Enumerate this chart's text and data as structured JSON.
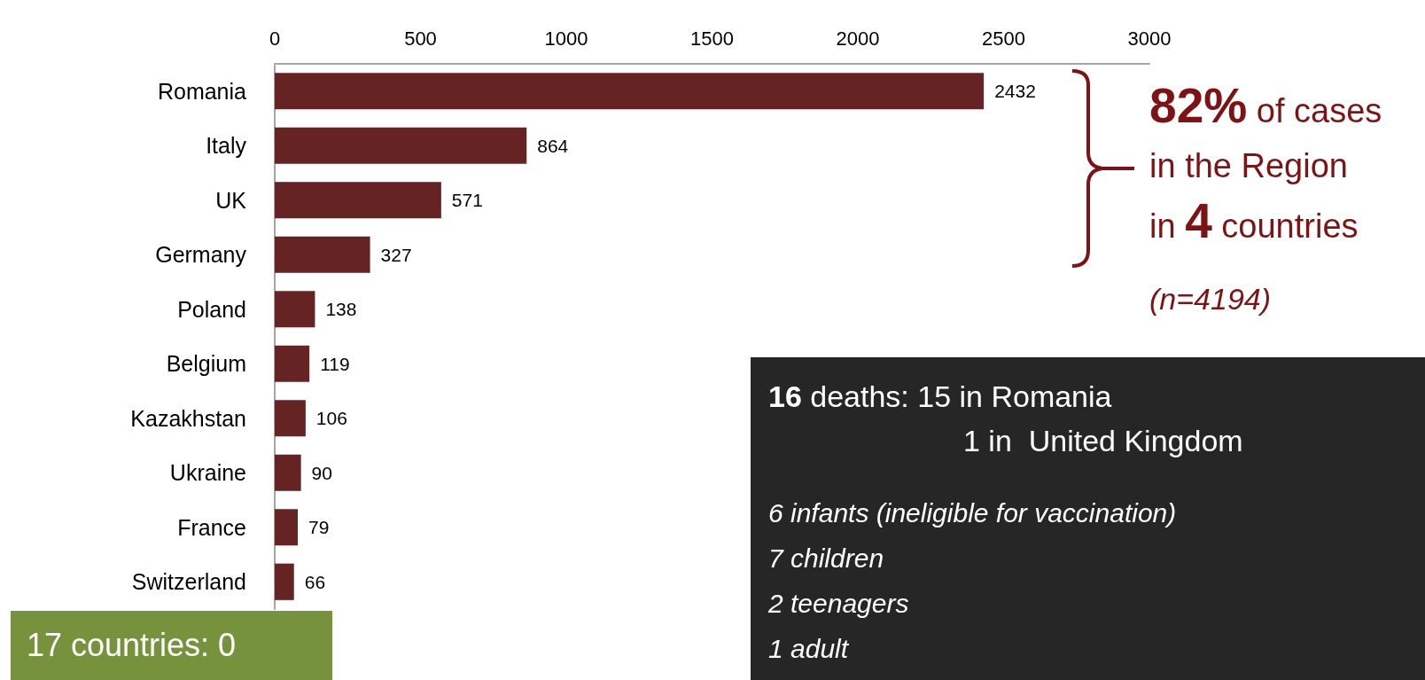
{
  "chart_data": {
    "type": "bar",
    "orientation": "horizontal",
    "categories": [
      "Romania",
      "Italy",
      "UK",
      "Germany",
      "Poland",
      "Belgium",
      "Kazakhstan",
      "Ukraine",
      "France",
      "Switzerland"
    ],
    "values": [
      2432,
      864,
      571,
      327,
      138,
      119,
      106,
      90,
      79,
      66
    ],
    "color": "#652323",
    "xlim": [
      0,
      3000
    ],
    "xticks": [
      0,
      500,
      1000,
      1500,
      2000,
      2500,
      3000
    ],
    "data_labels": true,
    "grid": false,
    "annotations": [
      "82% of cases\nin the Region\nin 4 countries",
      "(n=4194)",
      "16 deaths: 15 in Romania\n1 in  United Kingdom",
      "6 infants (ineligible for vaccination)\n7 children\n2 teenagers\n1 adult",
      "17 countries: 0"
    ]
  }
}
